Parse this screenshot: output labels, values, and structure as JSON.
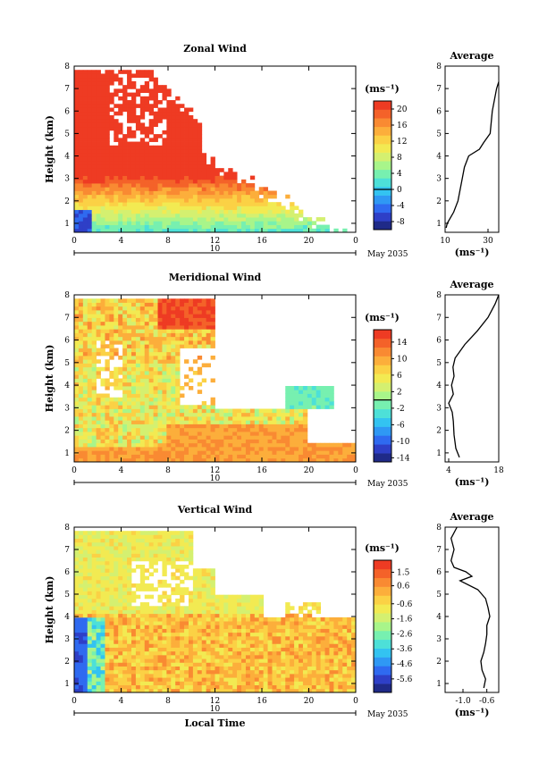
{
  "page": {
    "date_label": "May 2035",
    "x_label": "Local Time",
    "unit_label": "(ms⁻¹)",
    "y_label": "Height (km)",
    "profile_title": "Average",
    "day_label": "10"
  },
  "chart_data": [
    {
      "type": "heatmap",
      "title": "Zonal Wind",
      "ylabel": "Height (km)",
      "xlabel": "",
      "x_ticks": [
        "0",
        "4",
        "8",
        "12",
        "16",
        "20",
        "0"
      ],
      "y_ticks": [
        "1",
        "2",
        "3",
        "4",
        "5",
        "6",
        "7",
        "8"
      ],
      "xlim": [
        0,
        24
      ],
      "ylim": [
        0.6,
        8
      ],
      "colorbar": {
        "label": "(ms⁻¹)",
        "range": [
          -10,
          22
        ],
        "ticks": [
          "20",
          "16",
          "12",
          "8",
          "4",
          "0",
          "-4",
          "-8"
        ],
        "tick_values": [
          20,
          16,
          12,
          8,
          4,
          0,
          -4,
          -8
        ],
        "zero_line": 0
      },
      "profile": {
        "title": "Average",
        "xlim": [
          10,
          35
        ],
        "x_ticks": [
          "10",
          "30"
        ],
        "x_tick_values": [
          10,
          30
        ],
        "xlabel": "(ms⁻¹)",
        "y": [
          0.8,
          1.0,
          1.5,
          2.0,
          2.5,
          3.0,
          3.5,
          4.0,
          4.3,
          4.6,
          5.0,
          5.5,
          6.0,
          6.5,
          7.0,
          7.3
        ],
        "x": [
          10.5,
          11,
          14,
          16,
          17,
          18,
          19,
          21,
          26,
          28,
          31,
          31.5,
          32,
          33,
          34,
          35
        ]
      }
    },
    {
      "type": "heatmap",
      "title": "Meridional Wind",
      "ylabel": "Height (km)",
      "xlabel": "",
      "x_ticks": [
        "0",
        "4",
        "8",
        "12",
        "16",
        "20",
        "0"
      ],
      "y_ticks": [
        "1",
        "2",
        "3",
        "4",
        "5",
        "6",
        "7",
        "8"
      ],
      "xlim": [
        0,
        24
      ],
      "ylim": [
        0.6,
        8
      ],
      "colorbar": {
        "label": "(ms⁻¹)",
        "range": [
          -15,
          17
        ],
        "ticks": [
          "14",
          "10",
          "6",
          "2",
          "-2",
          "-6",
          "-10",
          "-14"
        ],
        "tick_values": [
          14,
          10,
          6,
          2,
          -2,
          -6,
          -10,
          -14
        ],
        "zero_line": 0
      },
      "profile": {
        "title": "Average",
        "xlim": [
          3,
          18
        ],
        "x_ticks": [
          "4",
          "18"
        ],
        "x_tick_values": [
          4,
          18
        ],
        "xlabel": "(ms⁻¹)",
        "y": [
          0.8,
          1.2,
          1.8,
          2.4,
          2.8,
          3.2,
          3.6,
          4.0,
          4.4,
          4.8,
          5.2,
          5.8,
          6.4,
          7.0,
          7.6,
          8.0
        ],
        "x": [
          7,
          6,
          5.5,
          5.3,
          5.0,
          4.0,
          5.3,
          4.8,
          5.5,
          5.2,
          5.8,
          8.5,
          12,
          15,
          17,
          18
        ]
      }
    },
    {
      "type": "heatmap",
      "title": "Vertical Wind",
      "ylabel": "Height (km)",
      "xlabel": "Local Time",
      "x_ticks": [
        "0",
        "4",
        "8",
        "12",
        "16",
        "20",
        "0"
      ],
      "y_ticks": [
        "1",
        "2",
        "3",
        "4",
        "5",
        "6",
        "7",
        "8"
      ],
      "xlim": [
        0,
        24
      ],
      "ylim": [
        0.6,
        8
      ],
      "colorbar": {
        "label": "(ms⁻¹)",
        "range": [
          -6.5,
          2.3
        ],
        "ticks": [
          "1.5",
          "0.6",
          "-0.6",
          "-1.6",
          "-2.6",
          "-3.6",
          "-4.6",
          "-5.6"
        ],
        "tick_values": [
          1.5,
          0.6,
          -0.6,
          -1.6,
          -2.6,
          -3.6,
          -4.6,
          -5.6
        ]
      },
      "profile": {
        "title": "Average",
        "xlim": [
          -1.3,
          -0.4
        ],
        "x_ticks": [
          "-1.0",
          "-0.6"
        ],
        "x_tick_values": [
          -1.0,
          -0.6
        ],
        "xlabel": "(ms⁻¹)",
        "y": [
          0.8,
          1.2,
          1.6,
          2.0,
          2.4,
          2.8,
          3.2,
          3.6,
          4.0,
          4.4,
          4.8,
          5.2,
          5.6,
          5.8,
          6.0,
          6.2,
          6.5,
          7.0,
          7.5,
          8.0
        ],
        "x": [
          -0.65,
          -0.62,
          -0.68,
          -0.7,
          -0.65,
          -0.62,
          -0.6,
          -0.6,
          -0.55,
          -0.58,
          -0.62,
          -0.75,
          -1.05,
          -0.85,
          -0.95,
          -1.15,
          -1.2,
          -1.15,
          -1.2,
          -1.1
        ]
      }
    }
  ]
}
